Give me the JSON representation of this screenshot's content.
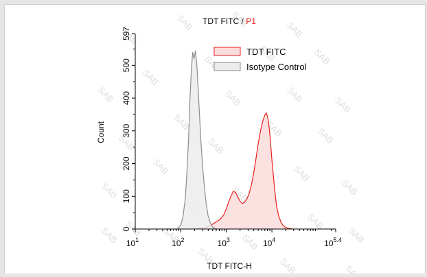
{
  "chart_data": {
    "type": "area",
    "title": "TDT FITC",
    "title_separator": " / ",
    "title_gate": "P1",
    "xlabel": "TDT FITC-H",
    "ylabel": "Count",
    "x_scale": "log10",
    "xlim": [
      1,
      5.4
    ],
    "ylim": [
      0,
      597
    ],
    "x_ticks": [
      {
        "base": "10",
        "exp": "1",
        "value": 1
      },
      {
        "base": "10",
        "exp": "2",
        "value": 2
      },
      {
        "base": "10",
        "exp": "3",
        "value": 3
      },
      {
        "base": "10",
        "exp": "4",
        "value": 4
      },
      {
        "base": "10",
        "exp": "5.4",
        "value": 5.4
      }
    ],
    "y_ticks": [
      "0",
      "100",
      "200",
      "300",
      "400",
      "500",
      "597"
    ],
    "y_tick_values": [
      0,
      100,
      200,
      300,
      400,
      500,
      597
    ],
    "legend_position": "top-right",
    "watermark": "SAB",
    "series": [
      {
        "name": "TDT FITC",
        "stroke": "#e8211e",
        "fill": "#fbdcdc",
        "x": [
          2.35,
          2.5,
          2.6,
          2.7,
          2.78,
          2.85,
          2.9,
          2.95,
          3.0,
          3.05,
          3.1,
          3.15,
          3.2,
          3.25,
          3.3,
          3.35,
          3.4,
          3.45,
          3.5,
          3.55,
          3.6,
          3.65,
          3.7,
          3.75,
          3.8,
          3.85,
          3.88,
          3.91,
          3.94,
          3.97,
          4.0,
          4.03,
          4.06,
          4.1,
          4.15,
          4.2,
          4.25,
          4.3,
          4.35,
          4.45
        ],
        "y": [
          0,
          3,
          8,
          15,
          22,
          28,
          35,
          45,
          62,
          82,
          100,
          115,
          112,
          98,
          85,
          78,
          82,
          92,
          108,
          135,
          170,
          215,
          262,
          300,
          330,
          350,
          354,
          340,
          310,
          265,
          210,
          165,
          120,
          72,
          40,
          20,
          10,
          5,
          2,
          0
        ]
      },
      {
        "name": "Isotype Control",
        "stroke": "#8c8c8c",
        "fill": "#ececec",
        "x": [
          1.92,
          2.0,
          2.05,
          2.1,
          2.13,
          2.17,
          2.2,
          2.23,
          2.26,
          2.29,
          2.32,
          2.35,
          2.38,
          2.41,
          2.44,
          2.48,
          2.52,
          2.56,
          2.6,
          2.65,
          2.7,
          2.76
        ],
        "y": [
          0,
          12,
          40,
          95,
          165,
          270,
          390,
          480,
          540,
          520,
          545,
          505,
          430,
          350,
          270,
          190,
          125,
          75,
          40,
          18,
          6,
          0
        ]
      }
    ]
  }
}
